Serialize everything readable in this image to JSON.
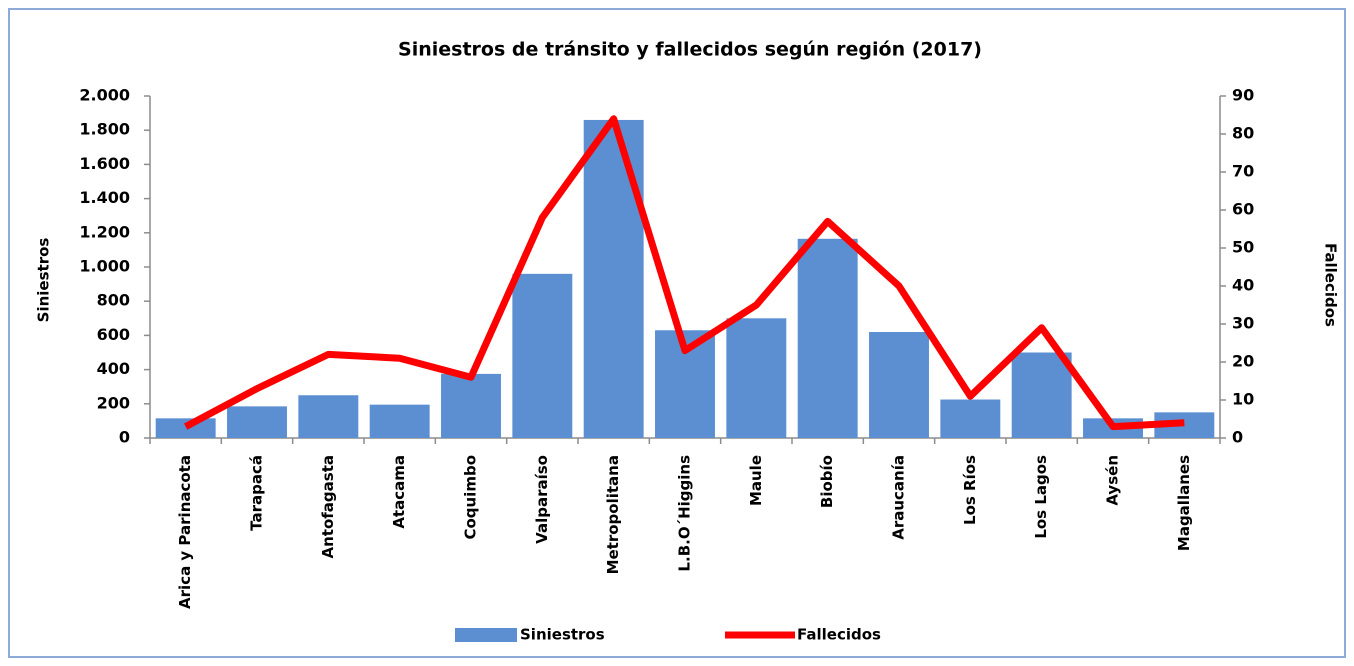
{
  "chart_data": {
    "type": "bar",
    "title": "Siniestros de tránsito y fallecidos según región (2017)",
    "y_label": "Siniestros",
    "y2_label": "Fallecidos",
    "categories": [
      "Arica y Parinacota",
      "Tarapacá",
      "Antofagasta",
      "Atacama",
      "Coquimbo",
      "Valparaíso",
      "Metropolitana",
      "L.B.O´Higgins",
      "Maule",
      "Biobío",
      "Araucanía",
      "Los Ríos",
      "Los Lagos",
      "Aysén",
      "Magallanes"
    ],
    "series": [
      {
        "name": "Siniestros",
        "type": "bar",
        "color": "#5b8fd2",
        "values": [
          115,
          185,
          250,
          195,
          375,
          960,
          1860,
          630,
          700,
          1165,
          620,
          225,
          500,
          115,
          150
        ]
      },
      {
        "name": "Fallecidos",
        "type": "line",
        "axis": "y2",
        "color": "#ff0000",
        "values": [
          3,
          13,
          22,
          21,
          16,
          58,
          84,
          23,
          35,
          57,
          40,
          11,
          29,
          3,
          4
        ]
      }
    ],
    "ylim": [
      0,
      2000
    ],
    "yticks": [
      0,
      200,
      400,
      600,
      800,
      {
        "value": 1000,
        "label": "1.000"
      },
      {
        "value": 1200,
        "label": "1.200"
      },
      {
        "value": 1400,
        "label": "1.400"
      },
      {
        "value": 1600,
        "label": "1.600"
      },
      {
        "value": 1800,
        "label": "1.800"
      },
      {
        "value": 2000,
        "label": "2.000"
      }
    ],
    "y2lim": [
      0,
      90
    ],
    "y2ticks": [
      0,
      10,
      20,
      30,
      40,
      50,
      60,
      70,
      80,
      90
    ],
    "grid": false,
    "legend": "bottom"
  }
}
